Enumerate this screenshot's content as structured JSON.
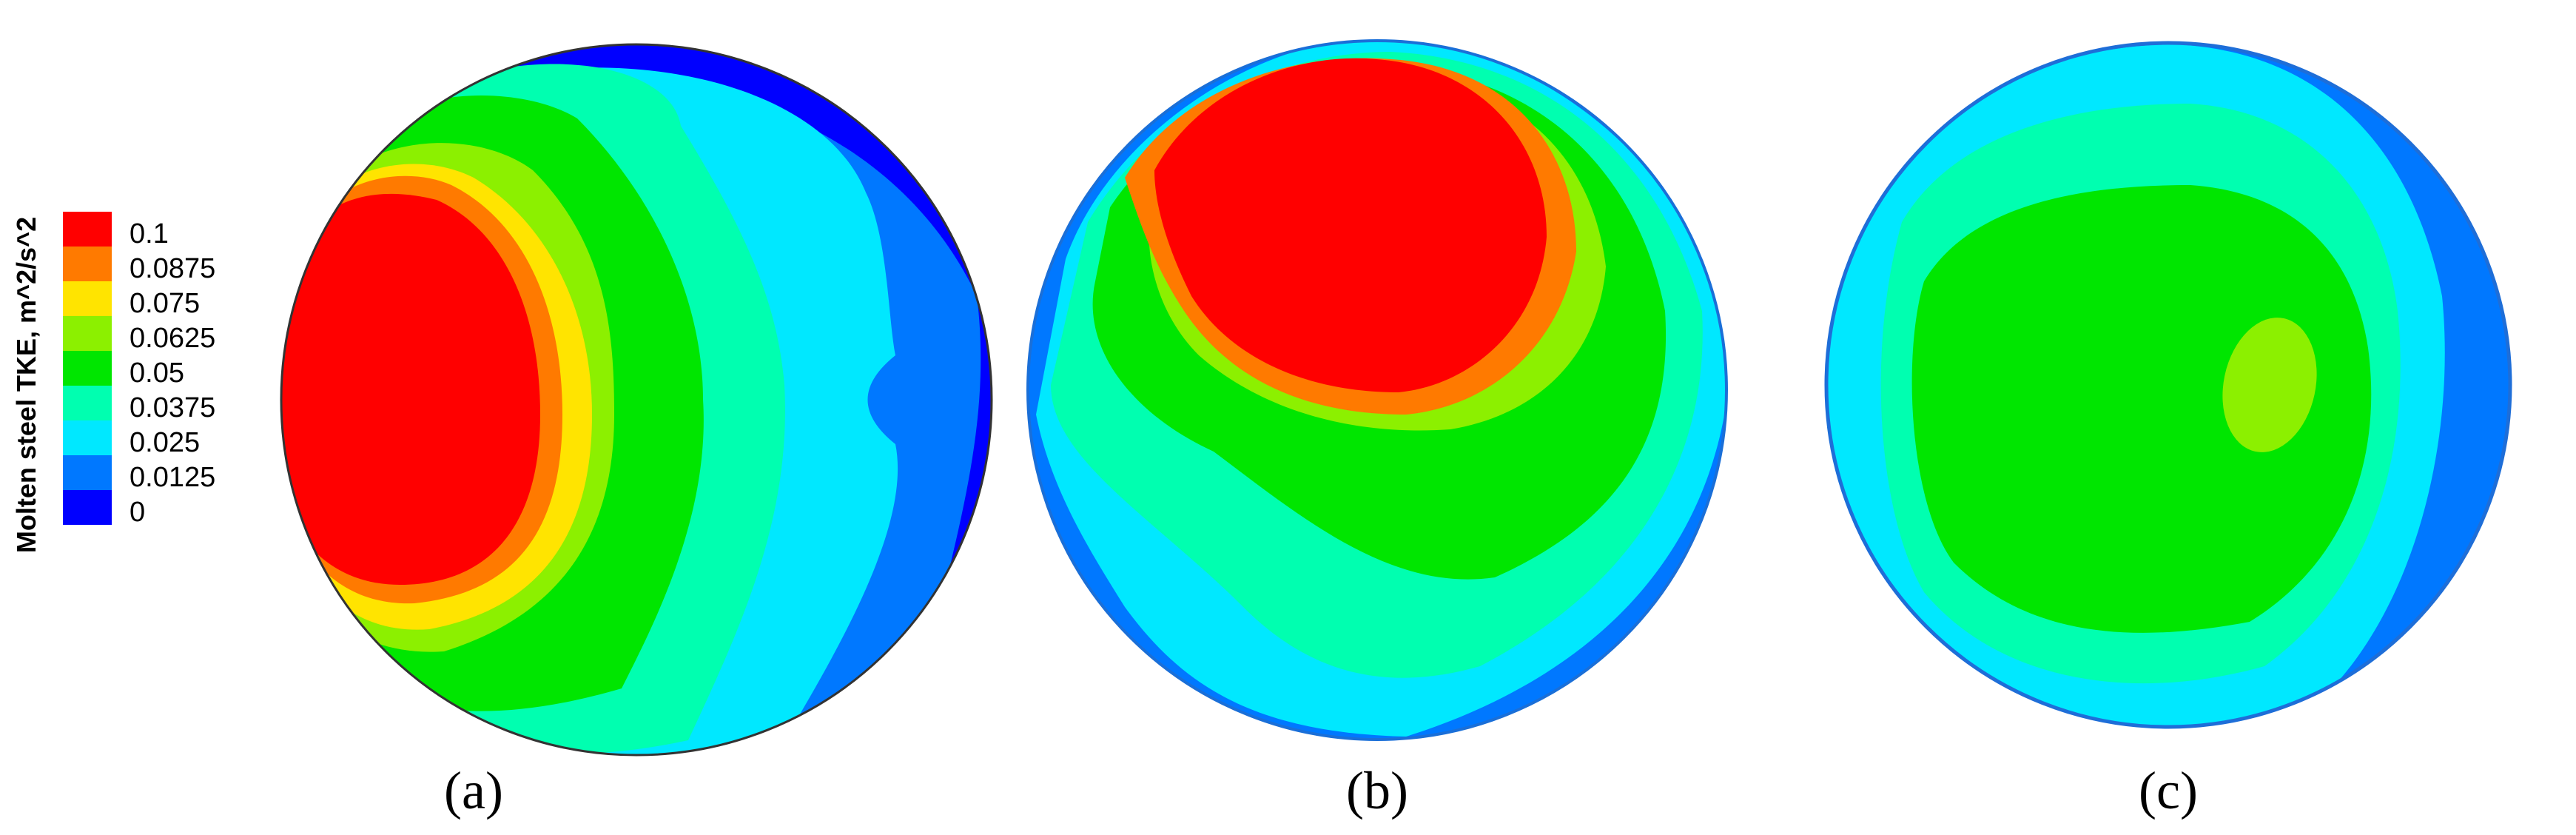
{
  "legend": {
    "title": "Molten steel TKE, m^2/s^2",
    "levels": [
      {
        "label": "0.1",
        "color": "#ff0000"
      },
      {
        "label": "0.0875",
        "color": "#ff7a00"
      },
      {
        "label": "0.075",
        "color": "#ffe400"
      },
      {
        "label": "0.0625",
        "color": "#8cf000"
      },
      {
        "label": "0.05",
        "color": "#00e600"
      },
      {
        "label": "0.0375",
        "color": "#00ffb0"
      },
      {
        "label": "0.025",
        "color": "#00e8ff"
      },
      {
        "label": "0.0125",
        "color": "#0078ff"
      },
      {
        "label": "0",
        "color": "#0000ff"
      }
    ]
  },
  "panels": [
    {
      "caption": "(a)"
    },
    {
      "caption": "(b)"
    },
    {
      "caption": "(c)"
    }
  ]
}
